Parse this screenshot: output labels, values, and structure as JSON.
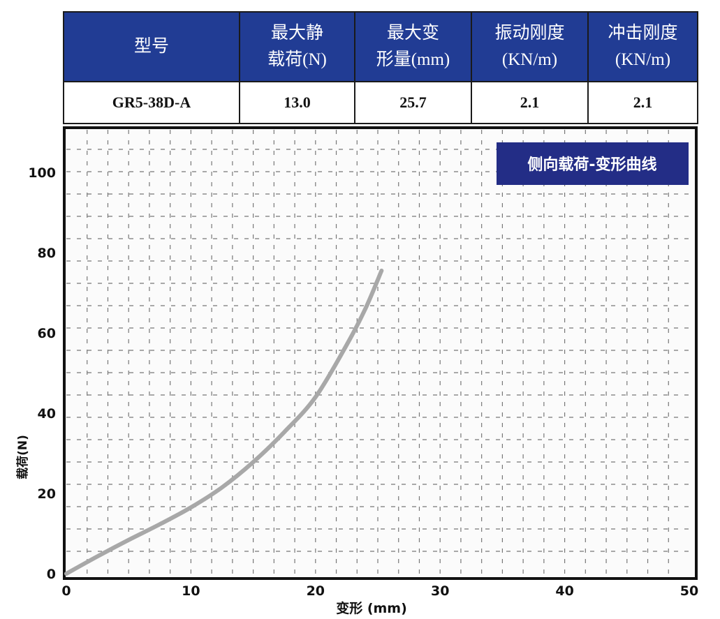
{
  "spec_table": {
    "headers": [
      {
        "line1": "型号",
        "line2": ""
      },
      {
        "line1": "最大静",
        "line2": "载荷(N)"
      },
      {
        "line1": "最大变",
        "line2": "形量(mm)"
      },
      {
        "line1": "振动刚度",
        "line2": "(KN/m)"
      },
      {
        "line1": "冲击刚度",
        "line2": "(KN/m)"
      }
    ],
    "row": [
      "GR5-38D-A",
      "13.0",
      "25.7",
      "2.1",
      "2.1"
    ]
  },
  "chart_data": {
    "type": "line",
    "title": "侧向载荷-变形曲线",
    "xlabel": "变形 (mm)",
    "ylabel": "载荷(N)",
    "xlim": [
      0,
      50
    ],
    "ylim": [
      0,
      110
    ],
    "xticks": [
      "0",
      "10",
      "20",
      "30",
      "40",
      "50"
    ],
    "yticks": [
      "0",
      "20",
      "40",
      "60",
      "80",
      "100"
    ],
    "grid": true,
    "legend": "none",
    "colors": {
      "title_bg": "#232d86",
      "line": "#a8a8a8",
      "header_bg": "#213c94"
    },
    "series": [
      {
        "x": [
          0,
          2.5,
          5,
          7.5,
          10,
          12.5,
          15,
          17.5,
          20,
          22.5,
          24,
          25.3
        ],
        "y": [
          0,
          4.3,
          8.4,
          12.3,
          16.5,
          21.5,
          27.8,
          35.3,
          44,
          57,
          66,
          75.5
        ]
      }
    ]
  }
}
